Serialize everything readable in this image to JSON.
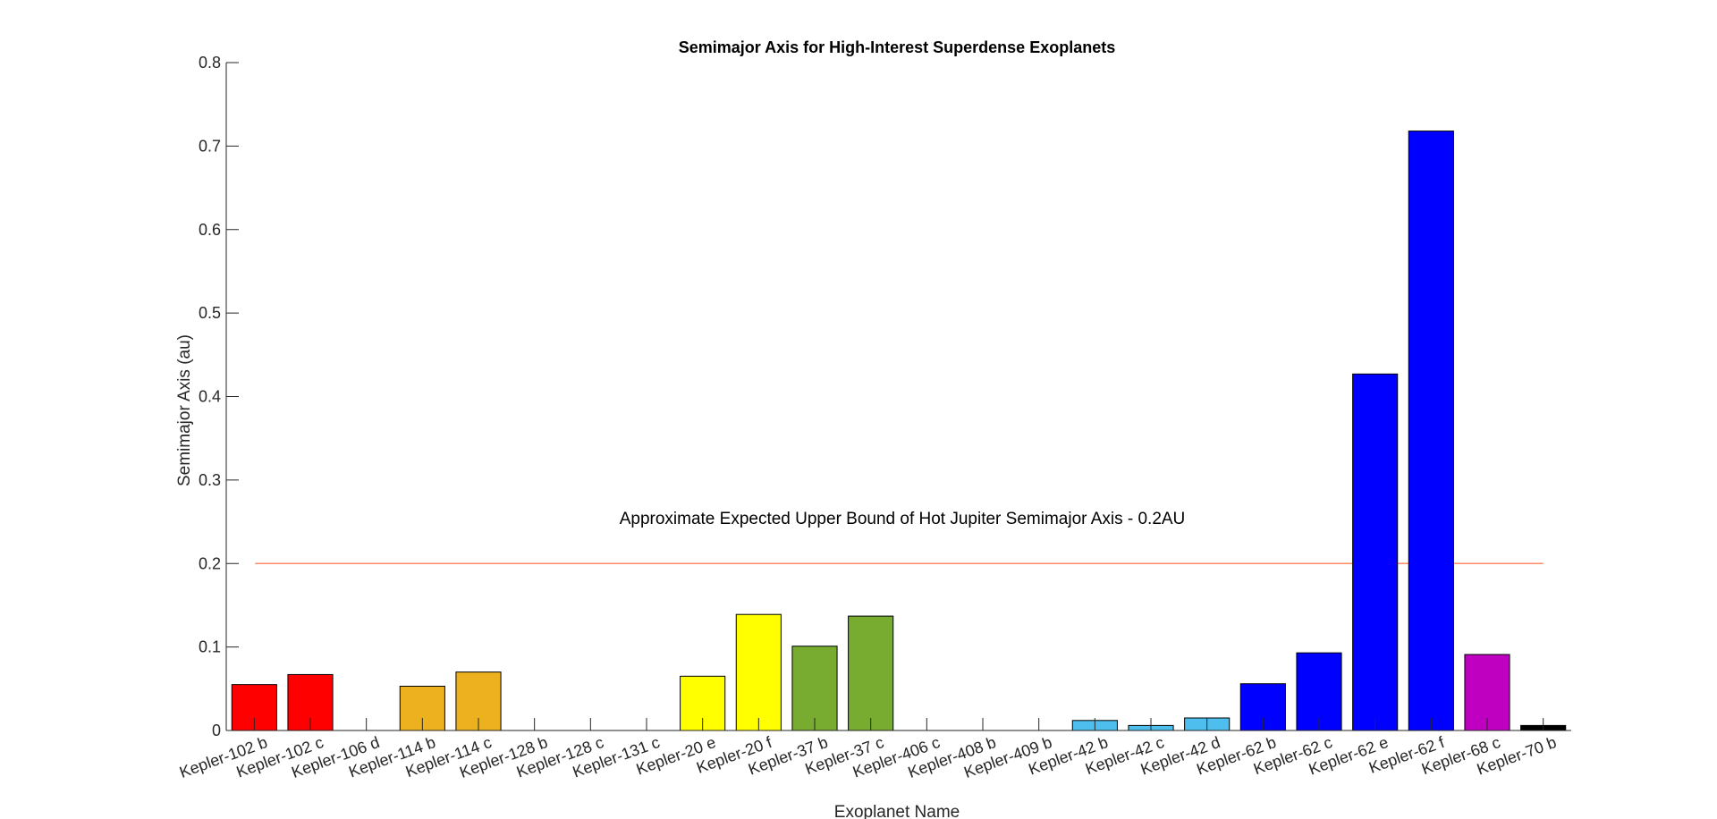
{
  "chart_data": {
    "type": "bar",
    "title": "Semimajor Axis for High-Interest Superdense Exoplanets",
    "xlabel": "Exoplanet Name",
    "ylabel": "Semimajor Axis (au)",
    "ylim": [
      0,
      0.8
    ],
    "yticks": [
      "0",
      "0.1",
      "0.2",
      "0.3",
      "0.4",
      "0.5",
      "0.6",
      "0.7",
      "0.8"
    ],
    "categories": [
      "Kepler-102 b",
      "Kepler-102 c",
      "Kepler-106 d",
      "Kepler-114 b",
      "Kepler-114 c",
      "Kepler-128 b",
      "Kepler-128 c",
      "Kepler-131 c",
      "Kepler-20 e",
      "Kepler-20 f",
      "Kepler-37 b",
      "Kepler-37 c",
      "Kepler-406 c",
      "Kepler-408 b",
      "Kepler-409 b",
      "Kepler-42 b",
      "Kepler-42 c",
      "Kepler-42 d",
      "Kepler-62 b",
      "Kepler-62 c",
      "Kepler-62 e",
      "Kepler-62 f",
      "Kepler-68 c",
      "Kepler-70 b"
    ],
    "values": [
      0.055,
      0.067,
      null,
      0.053,
      0.07,
      null,
      null,
      null,
      0.065,
      0.139,
      0.101,
      0.137,
      null,
      null,
      null,
      0.012,
      0.006,
      0.015,
      0.056,
      0.093,
      0.427,
      0.718,
      0.091,
      0.006
    ],
    "colors": [
      "#ff0000",
      "#ff0000",
      null,
      "#edb120",
      "#edb120",
      null,
      null,
      null,
      "#ffff00",
      "#ffff00",
      "#77ac30",
      "#77ac30",
      null,
      null,
      null,
      "#4dbeee",
      "#4dbeee",
      "#4dbeee",
      "#0000ff",
      "#0000ff",
      "#0000ff",
      "#0000ff",
      "#c000c0",
      "#000000"
    ],
    "reference_line": {
      "value": 0.2,
      "color": "#ff8a65",
      "label": "Approximate Expected Upper Bound of Hot Jupiter Semimajor Axis - 0.2AU"
    },
    "grid": false
  }
}
